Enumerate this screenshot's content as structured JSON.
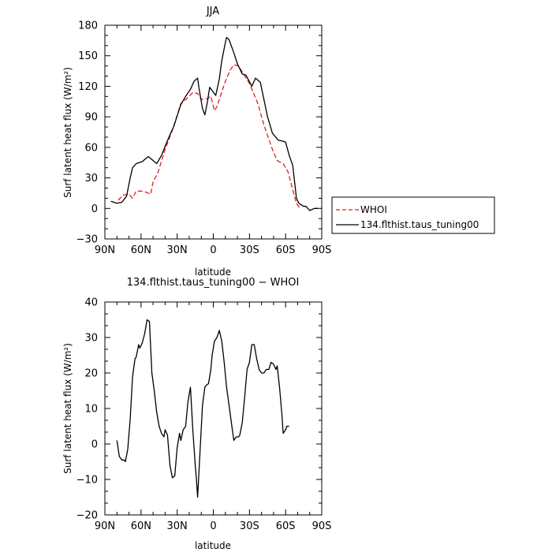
{
  "chart_data": [
    {
      "type": "line",
      "title": "JJA",
      "xlabel": "latitude",
      "ylabel": "Surf latent heat flux (W/m²)",
      "xlim": [
        90,
        -90
      ],
      "ylim": [
        -30,
        180
      ],
      "x_ticks": [
        {
          "value": 90,
          "label": "90N"
        },
        {
          "value": 60,
          "label": "60N"
        },
        {
          "value": 30,
          "label": "30N"
        },
        {
          "value": 0,
          "label": "0"
        },
        {
          "value": -30,
          "label": "30S"
        },
        {
          "value": -60,
          "label": "60S"
        },
        {
          "value": -90,
          "label": "90S"
        }
      ],
      "y_ticks": [
        -30,
        0,
        30,
        60,
        90,
        120,
        150,
        180
      ],
      "legend_position": "right",
      "series": [
        {
          "name": "WHOI",
          "color": "#e02020",
          "dash": "dashed",
          "points": [
            [
              79,
              8
            ],
            [
              75,
              13
            ],
            [
              70,
              14
            ],
            [
              67,
              10
            ],
            [
              64,
              17
            ],
            [
              60,
              17
            ],
            [
              56,
              16
            ],
            [
              52,
              14
            ],
            [
              50,
              26
            ],
            [
              46,
              35
            ],
            [
              40,
              58
            ],
            [
              33,
              80
            ],
            [
              27,
              103
            ],
            [
              20,
              110
            ],
            [
              17,
              114
            ],
            [
              13,
              113
            ],
            [
              10,
              107
            ],
            [
              5,
              108
            ],
            [
              2,
              110
            ],
            [
              -1,
              96
            ],
            [
              -3,
              100
            ],
            [
              -8,
              118
            ],
            [
              -10,
              125
            ],
            [
              -14,
              136
            ],
            [
              -17,
              141
            ],
            [
              -21,
              140
            ],
            [
              -24,
              134
            ],
            [
              -30,
              123
            ],
            [
              -37,
              103
            ],
            [
              -42,
              82
            ],
            [
              -49,
              58
            ],
            [
              -53,
              47
            ],
            [
              -58,
              44
            ],
            [
              -62,
              36
            ],
            [
              -66,
              18
            ],
            [
              -69,
              5
            ],
            [
              -72,
              0
            ]
          ]
        },
        {
          "name": "134.flthist.taus_tuning00",
          "color": "#000000",
          "dash": "solid",
          "points": [
            [
              85,
              7
            ],
            [
              80,
              5
            ],
            [
              76,
              6
            ],
            [
              72,
              12
            ],
            [
              69,
              30
            ],
            [
              67,
              40
            ],
            [
              64,
              44
            ],
            [
              59,
              46
            ],
            [
              56,
              49
            ],
            [
              54,
              51
            ],
            [
              51,
              48
            ],
            [
              47,
              44
            ],
            [
              43,
              52
            ],
            [
              39,
              64
            ],
            [
              35,
              75
            ],
            [
              33,
              80
            ],
            [
              27,
              102
            ],
            [
              23,
              110
            ],
            [
              19,
              117
            ],
            [
              16,
              125
            ],
            [
              13,
              128
            ],
            [
              12,
              119
            ],
            [
              9,
              98
            ],
            [
              7,
              92
            ],
            [
              5,
              104
            ],
            [
              3,
              119
            ],
            [
              -2,
              111
            ],
            [
              -5,
              127
            ],
            [
              -7,
              145
            ],
            [
              -10,
              163
            ],
            [
              -11,
              168
            ],
            [
              -13,
              166
            ],
            [
              -17,
              153
            ],
            [
              -20,
              142
            ],
            [
              -24,
              132
            ],
            [
              -27,
              131
            ],
            [
              -32,
              120
            ],
            [
              -35,
              128
            ],
            [
              -39,
              124
            ],
            [
              -45,
              90
            ],
            [
              -49,
              74
            ],
            [
              -54,
              67
            ],
            [
              -58,
              66
            ],
            [
              -60,
              65
            ],
            [
              -63,
              52
            ],
            [
              -66,
              42
            ],
            [
              -69,
              10
            ],
            [
              -71,
              5
            ],
            [
              -75,
              2
            ],
            [
              -77,
              2
            ],
            [
              -80,
              -2
            ],
            [
              -84,
              0
            ],
            [
              -87,
              0
            ]
          ]
        }
      ]
    },
    {
      "type": "line",
      "title": "134.flthist.taus_tuning00 − WHOI",
      "xlabel": "latitude",
      "ylabel": "Surf latent heat flux (W/m²)",
      "xlim": [
        90,
        -90
      ],
      "ylim": [
        -20,
        40
      ],
      "x_ticks": [
        {
          "value": 90,
          "label": "90N"
        },
        {
          "value": 60,
          "label": "60N"
        },
        {
          "value": 30,
          "label": "30N"
        },
        {
          "value": 0,
          "label": "0"
        },
        {
          "value": -30,
          "label": "30S"
        },
        {
          "value": -60,
          "label": "60S"
        },
        {
          "value": -90,
          "label": "90S"
        }
      ],
      "y_ticks": [
        -20,
        -10,
        0,
        10,
        20,
        30,
        40
      ],
      "series": [
        {
          "color": "#000000",
          "dash": "solid",
          "points": [
            [
              80,
              1
            ],
            [
              78,
              -3.5
            ],
            [
              76,
              -4.5
            ],
            [
              74,
              -4.5
            ],
            [
              73,
              -5
            ],
            [
              71,
              -1.5
            ],
            [
              69,
              7
            ],
            [
              67,
              19
            ],
            [
              65,
              24
            ],
            [
              64,
              24.5
            ],
            [
              62,
              28
            ],
            [
              61,
              27
            ],
            [
              59,
              28.5
            ],
            [
              57,
              31
            ],
            [
              55,
              35
            ],
            [
              53,
              34.5
            ],
            [
              51,
              20
            ],
            [
              49,
              15
            ],
            [
              47,
              9
            ],
            [
              45,
              5
            ],
            [
              43,
              3
            ],
            [
              41,
              2
            ],
            [
              40,
              4
            ],
            [
              38,
              2.5
            ],
            [
              36,
              -6
            ],
            [
              34,
              -9.5
            ],
            [
              32,
              -9
            ],
            [
              30,
              -1
            ],
            [
              28,
              3
            ],
            [
              27,
              1
            ],
            [
              25,
              4
            ],
            [
              23,
              5
            ],
            [
              21,
              12
            ],
            [
              19,
              16
            ],
            [
              17,
              4
            ],
            [
              15,
              -6
            ],
            [
              14,
              -10
            ],
            [
              13,
              -15
            ],
            [
              11,
              -2
            ],
            [
              9,
              11
            ],
            [
              7,
              16
            ],
            [
              6,
              16.5
            ],
            [
              4,
              17
            ],
            [
              2,
              21
            ],
            [
              1,
              25
            ],
            [
              -1,
              29
            ],
            [
              -3,
              30
            ],
            [
              -5,
              32
            ],
            [
              -7,
              29
            ],
            [
              -9,
              23
            ],
            [
              -11,
              16
            ],
            [
              -13,
              11
            ],
            [
              -15,
              6
            ],
            [
              -17,
              1
            ],
            [
              -19,
              2
            ],
            [
              -21,
              2
            ],
            [
              -22,
              2.5
            ],
            [
              -24,
              6
            ],
            [
              -26,
              13
            ],
            [
              -28,
              21
            ],
            [
              -30,
              23
            ],
            [
              -32,
              28
            ],
            [
              -34,
              28
            ],
            [
              -36,
              24
            ],
            [
              -38,
              21
            ],
            [
              -40,
              20
            ],
            [
              -42,
              20
            ],
            [
              -44,
              21
            ],
            [
              -46,
              21
            ],
            [
              -48,
              23
            ],
            [
              -50,
              22.5
            ],
            [
              -52,
              21
            ],
            [
              -53,
              22
            ],
            [
              -55,
              16
            ],
            [
              -57,
              8
            ],
            [
              -58,
              3
            ],
            [
              -60,
              4
            ],
            [
              -61,
              5
            ],
            [
              -63,
              5
            ]
          ]
        }
      ]
    }
  ]
}
